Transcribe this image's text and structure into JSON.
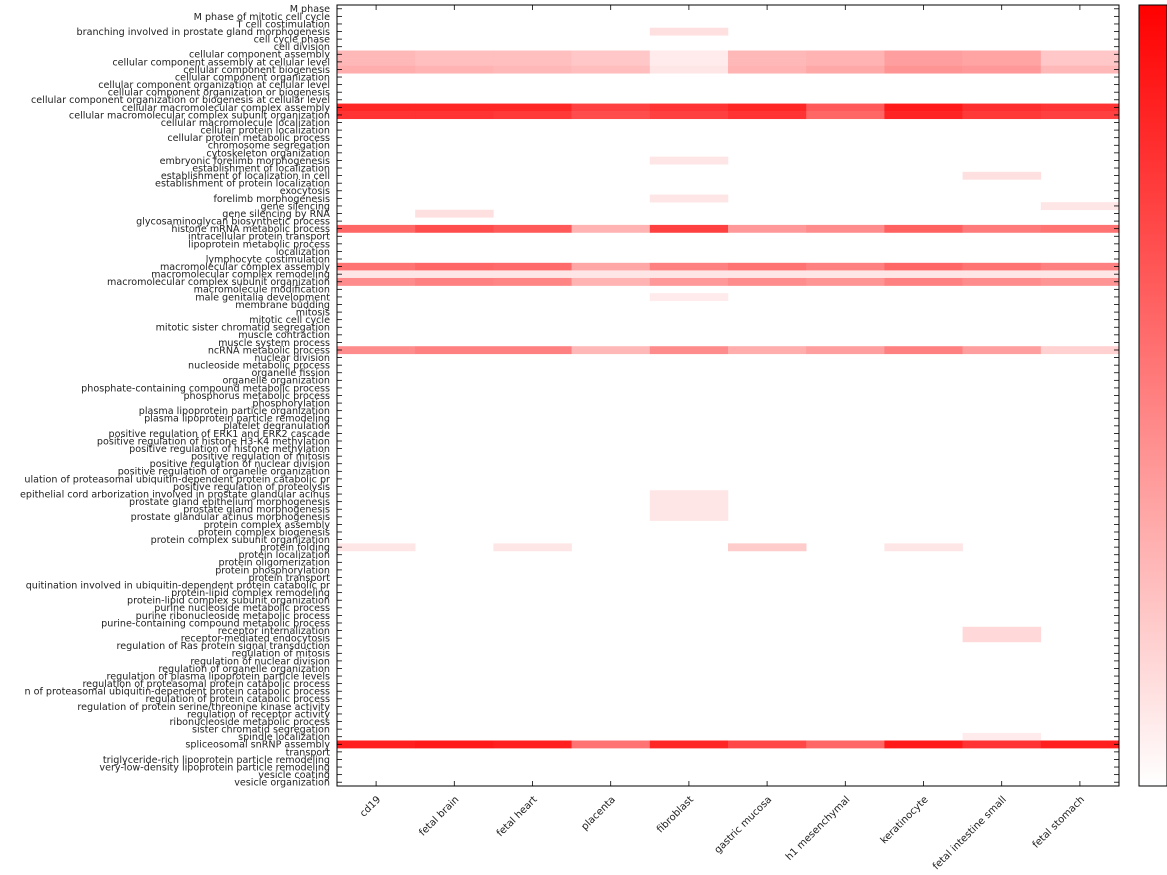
{
  "chart_data": {
    "type": "heatmap",
    "title": "",
    "xlabel": "",
    "ylabel": "",
    "colormap": {
      "low": "#ffffff",
      "high": "#ff0000"
    },
    "value_range": [
      0,
      1
    ],
    "columns": [
      "cd19",
      "fetal brain",
      "fetal heart",
      "placenta",
      "fibroblast",
      "gastric mucosa",
      "h1 mesenchymal",
      "keratinocyte",
      "fetal intestine small",
      "fetal stomach"
    ],
    "rows": [
      "M phase",
      "M phase of mitotic cell cycle",
      "T cell costimulation",
      "branching involved in prostate gland morphogenesis",
      "cell cycle phase",
      "cell division",
      "cellular component assembly",
      "cellular component assembly at cellular level",
      "cellular component biogenesis",
      "cellular component organization",
      "cellular component organization at cellular level",
      "cellular component organization or biogenesis",
      "cellular component organization or biogenesis at cellular level",
      "cellular macromolecular complex assembly",
      "cellular macromolecular complex subunit organization",
      "cellular macromolecule localization",
      "cellular protein localization",
      "cellular protein metabolic process",
      "chromosome segregation",
      "cytoskeleton organization",
      "embryonic forelimb morphogenesis",
      "establishment of localization",
      "establishment of localization in cell",
      "establishment of protein localization",
      "exocytosis",
      "forelimb morphogenesis",
      "gene silencing",
      "gene silencing by RNA",
      "glycosaminoglycan biosynthetic process",
      "histone mRNA metabolic process",
      "intracellular protein transport",
      "lipoprotein metabolic process",
      "localization",
      "lymphocyte costimulation",
      "macromolecular complex assembly",
      "macromolecular complex remodeling",
      "macromolecular complex subunit organization",
      "macromolecule modification",
      "male genitalia development",
      "membrane budding",
      "mitosis",
      "mitotic cell cycle",
      "mitotic sister chromatid segregation",
      "muscle contraction",
      "muscle system process",
      "ncRNA metabolic process",
      "nuclear division",
      "nucleoside metabolic process",
      "organelle fission",
      "organelle organization",
      "phosphate-containing compound metabolic process",
      "phosphorus metabolic process",
      "phosphorylation",
      "plasma lipoprotein particle organization",
      "plasma lipoprotein particle remodeling",
      "platelet degranulation",
      "positive regulation of ERK1 and ERK2 cascade",
      "positive regulation of histone H3-K4 methylation",
      "positive regulation of histone methylation",
      "positive regulation of mitosis",
      "positive regulation of nuclear division",
      "positive regulation of organelle organization",
      "ulation of proteasomal ubiquitin-dependent protein catabolic pr",
      "positive regulation of proteolysis",
      "epithelial cord arborization involved in prostate glandular acinus",
      "prostate gland epithelium morphogenesis",
      "prostate gland morphogenesis",
      "prostate glandular acinus morphogenesis",
      "protein complex assembly",
      "protein complex biogenesis",
      "protein complex subunit organization",
      "protein folding",
      "protein localization",
      "protein oligomerization",
      "protein phosphorylation",
      "protein transport",
      "quitination involved in ubiquitin-dependent protein catabolic pr",
      "protein-lipid complex remodeling",
      "protein-lipid complex subunit organization",
      "purine nucleoside metabolic process",
      "purine ribonucleoside metabolic process",
      "purine-containing compound metabolic process",
      "receptor internalization",
      "receptor-mediated endocytosis",
      "regulation of Ras protein signal transduction",
      "regulation of mitosis",
      "regulation of nuclear division",
      "regulation of organelle organization",
      "regulation of plasma lipoprotein particle levels",
      "regulation of proteasomal protein catabolic process",
      "n of proteasomal ubiquitin-dependent protein catabolic process",
      "regulation of protein catabolic process",
      "regulation of protein serine/threonine kinase activity",
      "regulation of receptor activity",
      "ribonucleoside metabolic process",
      "sister chromatid segregation",
      "spindle localization",
      "spliceosomal snRNP assembly",
      "transport",
      "triglyceride-rich lipoprotein particle remodeling",
      "very-low-density lipoprotein particle remodeling",
      "vesicle coating",
      "vesicle organization"
    ],
    "values": {
      "3": [
        0,
        0,
        0,
        0,
        0.12,
        0,
        0,
        0,
        0,
        0
      ],
      "6": [
        0.28,
        0.25,
        0.25,
        0.22,
        0.08,
        0.28,
        0.3,
        0.38,
        0.36,
        0.22
      ],
      "7": [
        0.28,
        0.25,
        0.25,
        0.22,
        0.08,
        0.28,
        0.3,
        0.38,
        0.36,
        0.22
      ],
      "8": [
        0.32,
        0.3,
        0.28,
        0.26,
        0.1,
        0.3,
        0.34,
        0.42,
        0.4,
        0.28
      ],
      "13": [
        0.85,
        0.85,
        0.85,
        0.75,
        0.8,
        0.85,
        0.65,
        0.9,
        0.82,
        0.8
      ],
      "14": [
        0.8,
        0.8,
        0.78,
        0.7,
        0.75,
        0.8,
        0.6,
        0.86,
        0.78,
        0.75
      ],
      "20": [
        0,
        0,
        0,
        0,
        0.1,
        0,
        0,
        0,
        0,
        0
      ],
      "22": [
        0,
        0,
        0,
        0,
        0,
        0,
        0,
        0,
        0.12,
        0
      ],
      "25": [
        0,
        0,
        0,
        0,
        0.1,
        0,
        0,
        0,
        0,
        0
      ],
      "26": [
        0,
        0,
        0,
        0,
        0,
        0,
        0,
        0,
        0,
        0.1
      ],
      "27": [
        0,
        0.12,
        0,
        0,
        0,
        0,
        0,
        0,
        0,
        0
      ],
      "29": [
        0.6,
        0.7,
        0.65,
        0.3,
        0.75,
        0.4,
        0.45,
        0.62,
        0.52,
        0.55
      ],
      "34": [
        0.55,
        0.6,
        0.58,
        0.35,
        0.5,
        0.55,
        0.5,
        0.6,
        0.55,
        0.5
      ],
      "35": [
        0.1,
        0.1,
        0.1,
        0.1,
        0.1,
        0.1,
        0.1,
        0.1,
        0.1,
        0.1
      ],
      "36": [
        0.45,
        0.5,
        0.48,
        0.3,
        0.4,
        0.45,
        0.42,
        0.5,
        0.45,
        0.42
      ],
      "38": [
        0,
        0,
        0,
        0,
        0.08,
        0,
        0,
        0,
        0,
        0
      ],
      "45": [
        0.45,
        0.5,
        0.5,
        0.28,
        0.45,
        0.32,
        0.38,
        0.5,
        0.38,
        0.18
      ],
      "64": [
        0,
        0,
        0,
        0,
        0.1,
        0,
        0,
        0,
        0,
        0
      ],
      "65": [
        0,
        0,
        0,
        0,
        0.1,
        0,
        0,
        0,
        0,
        0
      ],
      "66": [
        0,
        0,
        0,
        0,
        0.1,
        0,
        0,
        0,
        0,
        0
      ],
      "67": [
        0,
        0,
        0,
        0,
        0.1,
        0,
        0,
        0,
        0,
        0
      ],
      "71": [
        0.1,
        0,
        0.1,
        0,
        0,
        0.2,
        0,
        0.1,
        0,
        0
      ],
      "82": [
        0,
        0,
        0,
        0,
        0,
        0,
        0,
        0,
        0.15,
        0
      ],
      "83": [
        0,
        0,
        0,
        0,
        0,
        0,
        0,
        0,
        0.15,
        0
      ],
      "96": [
        0,
        0,
        0,
        0,
        0,
        0,
        0,
        0,
        0.08,
        0
      ],
      "97": [
        0.88,
        0.9,
        0.88,
        0.55,
        0.85,
        0.72,
        0.6,
        0.9,
        0.8,
        0.88
      ]
    }
  }
}
